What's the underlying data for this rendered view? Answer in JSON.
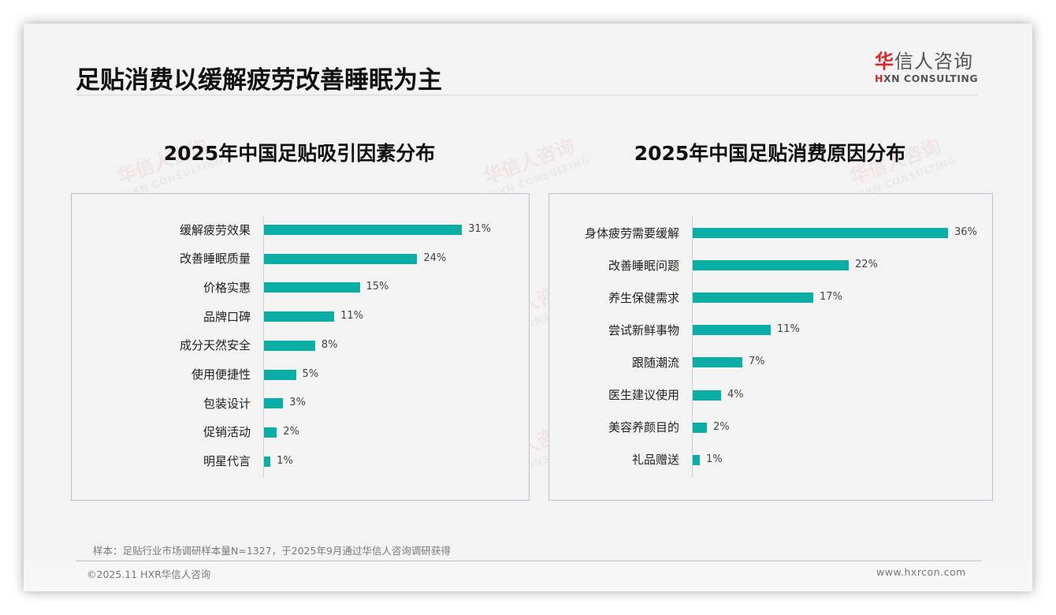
{
  "header": {
    "title": "足贴消费以缓解疲劳改善睡眠为主",
    "logo_mark": "华",
    "logo_text": "信人咨询",
    "logo_en_mark": "H",
    "logo_en_text": "XN CONSULTING"
  },
  "watermark": {
    "cn": "华信人咨询",
    "en": "HXN CONSULTING"
  },
  "colors": {
    "bar": "#0aaea5",
    "brand_red": "#d7282f",
    "box_border": "#b7c3d3"
  },
  "chart_data": [
    {
      "type": "bar",
      "orientation": "horizontal",
      "title": "2025年中国足贴吸引因素分布",
      "categories": [
        "缓解疲劳效果",
        "改善睡眠质量",
        "价格实惠",
        "品牌口碑",
        "成分天然安全",
        "使用便捷性",
        "包装设计",
        "促销活动",
        "明星代言"
      ],
      "values": [
        31,
        24,
        15,
        11,
        8,
        5,
        3,
        2,
        1
      ],
      "labels": [
        "31%",
        "24%",
        "15%",
        "11%",
        "8%",
        "5%",
        "3%",
        "2%",
        "1%"
      ],
      "unit": "%",
      "xlabel": "",
      "ylabel": "",
      "grid": false,
      "legend": "none"
    },
    {
      "type": "bar",
      "orientation": "horizontal",
      "title": "2025年中国足贴消费原因分布",
      "categories": [
        "身体疲劳需要缓解",
        "改善睡眠问题",
        "养生保健需求",
        "尝试新鲜事物",
        "跟随潮流",
        "医生建议使用",
        "美容养颜目的",
        "礼品赠送"
      ],
      "values": [
        36,
        22,
        17,
        11,
        7,
        4,
        2,
        1
      ],
      "labels": [
        "36%",
        "22%",
        "17%",
        "11%",
        "7%",
        "4%",
        "2%",
        "1%"
      ],
      "unit": "%",
      "xlabel": "",
      "ylabel": "",
      "grid": false,
      "legend": "none"
    }
  ],
  "footer": {
    "note": "样本：足贴行业市场调研样本量N=1327，于2025年9月通过华信人咨询调研获得",
    "copyright": "©2025.11 HXR华信人咨询",
    "website": "www.hxrcon.com"
  }
}
